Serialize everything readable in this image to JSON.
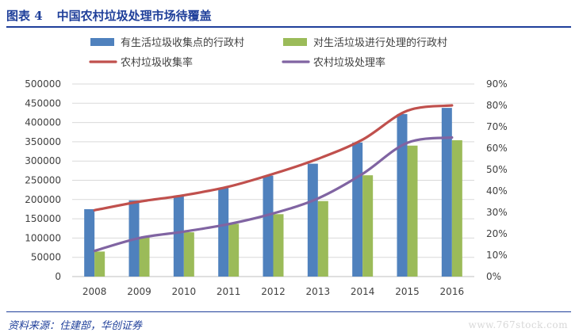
{
  "figure": {
    "number": "图表 4",
    "title": "中国农村垃圾处理市场待覆盖"
  },
  "source": "资料来源：住建部，华创证券",
  "watermark": "www.767stock.com",
  "colors": {
    "bar_collect": "#4f81bd",
    "bar_process": "#9bbb59",
    "line_collect": "#c0504d",
    "line_process": "#8064a2",
    "header": "#1f3f9a"
  },
  "chart_data": {
    "type": "bar",
    "categories": [
      "2008",
      "2009",
      "2010",
      "2011",
      "2012",
      "2013",
      "2014",
      "2015",
      "2016"
    ],
    "series": [
      {
        "name": "有生活垃圾收集点的行政村",
        "kind": "bar",
        "axis": "left",
        "color": "#4f81bd",
        "values": [
          175000,
          198000,
          210000,
          230000,
          262000,
          293000,
          348000,
          422000,
          438000
        ]
      },
      {
        "name": "对生活垃圾进行处理的行政村",
        "kind": "bar",
        "axis": "left",
        "color": "#9bbb59",
        "values": [
          65000,
          102000,
          115000,
          137000,
          162000,
          196000,
          263000,
          340000,
          354000
        ]
      },
      {
        "name": "农村垃圾收集率",
        "kind": "line",
        "axis": "right",
        "color": "#c0504d",
        "values": [
          0.31,
          0.35,
          0.38,
          0.42,
          0.48,
          0.55,
          0.64,
          0.775,
          0.8
        ]
      },
      {
        "name": "农村垃圾处理率",
        "kind": "line",
        "axis": "right",
        "color": "#8064a2",
        "values": [
          0.12,
          0.18,
          0.21,
          0.245,
          0.295,
          0.365,
          0.48,
          0.625,
          0.65
        ]
      }
    ],
    "y_left": {
      "min": 0,
      "max": 500000,
      "ticks": [
        "0",
        "50000",
        "100000",
        "150000",
        "200000",
        "250000",
        "300000",
        "350000",
        "400000",
        "450000",
        "500000"
      ]
    },
    "y_right": {
      "min": 0,
      "max": 0.9,
      "ticks": [
        "0%",
        "10%",
        "20%",
        "30%",
        "40%",
        "50%",
        "60%",
        "70%",
        "80%",
        "90%"
      ]
    },
    "grid": true,
    "legend_position": "top"
  }
}
